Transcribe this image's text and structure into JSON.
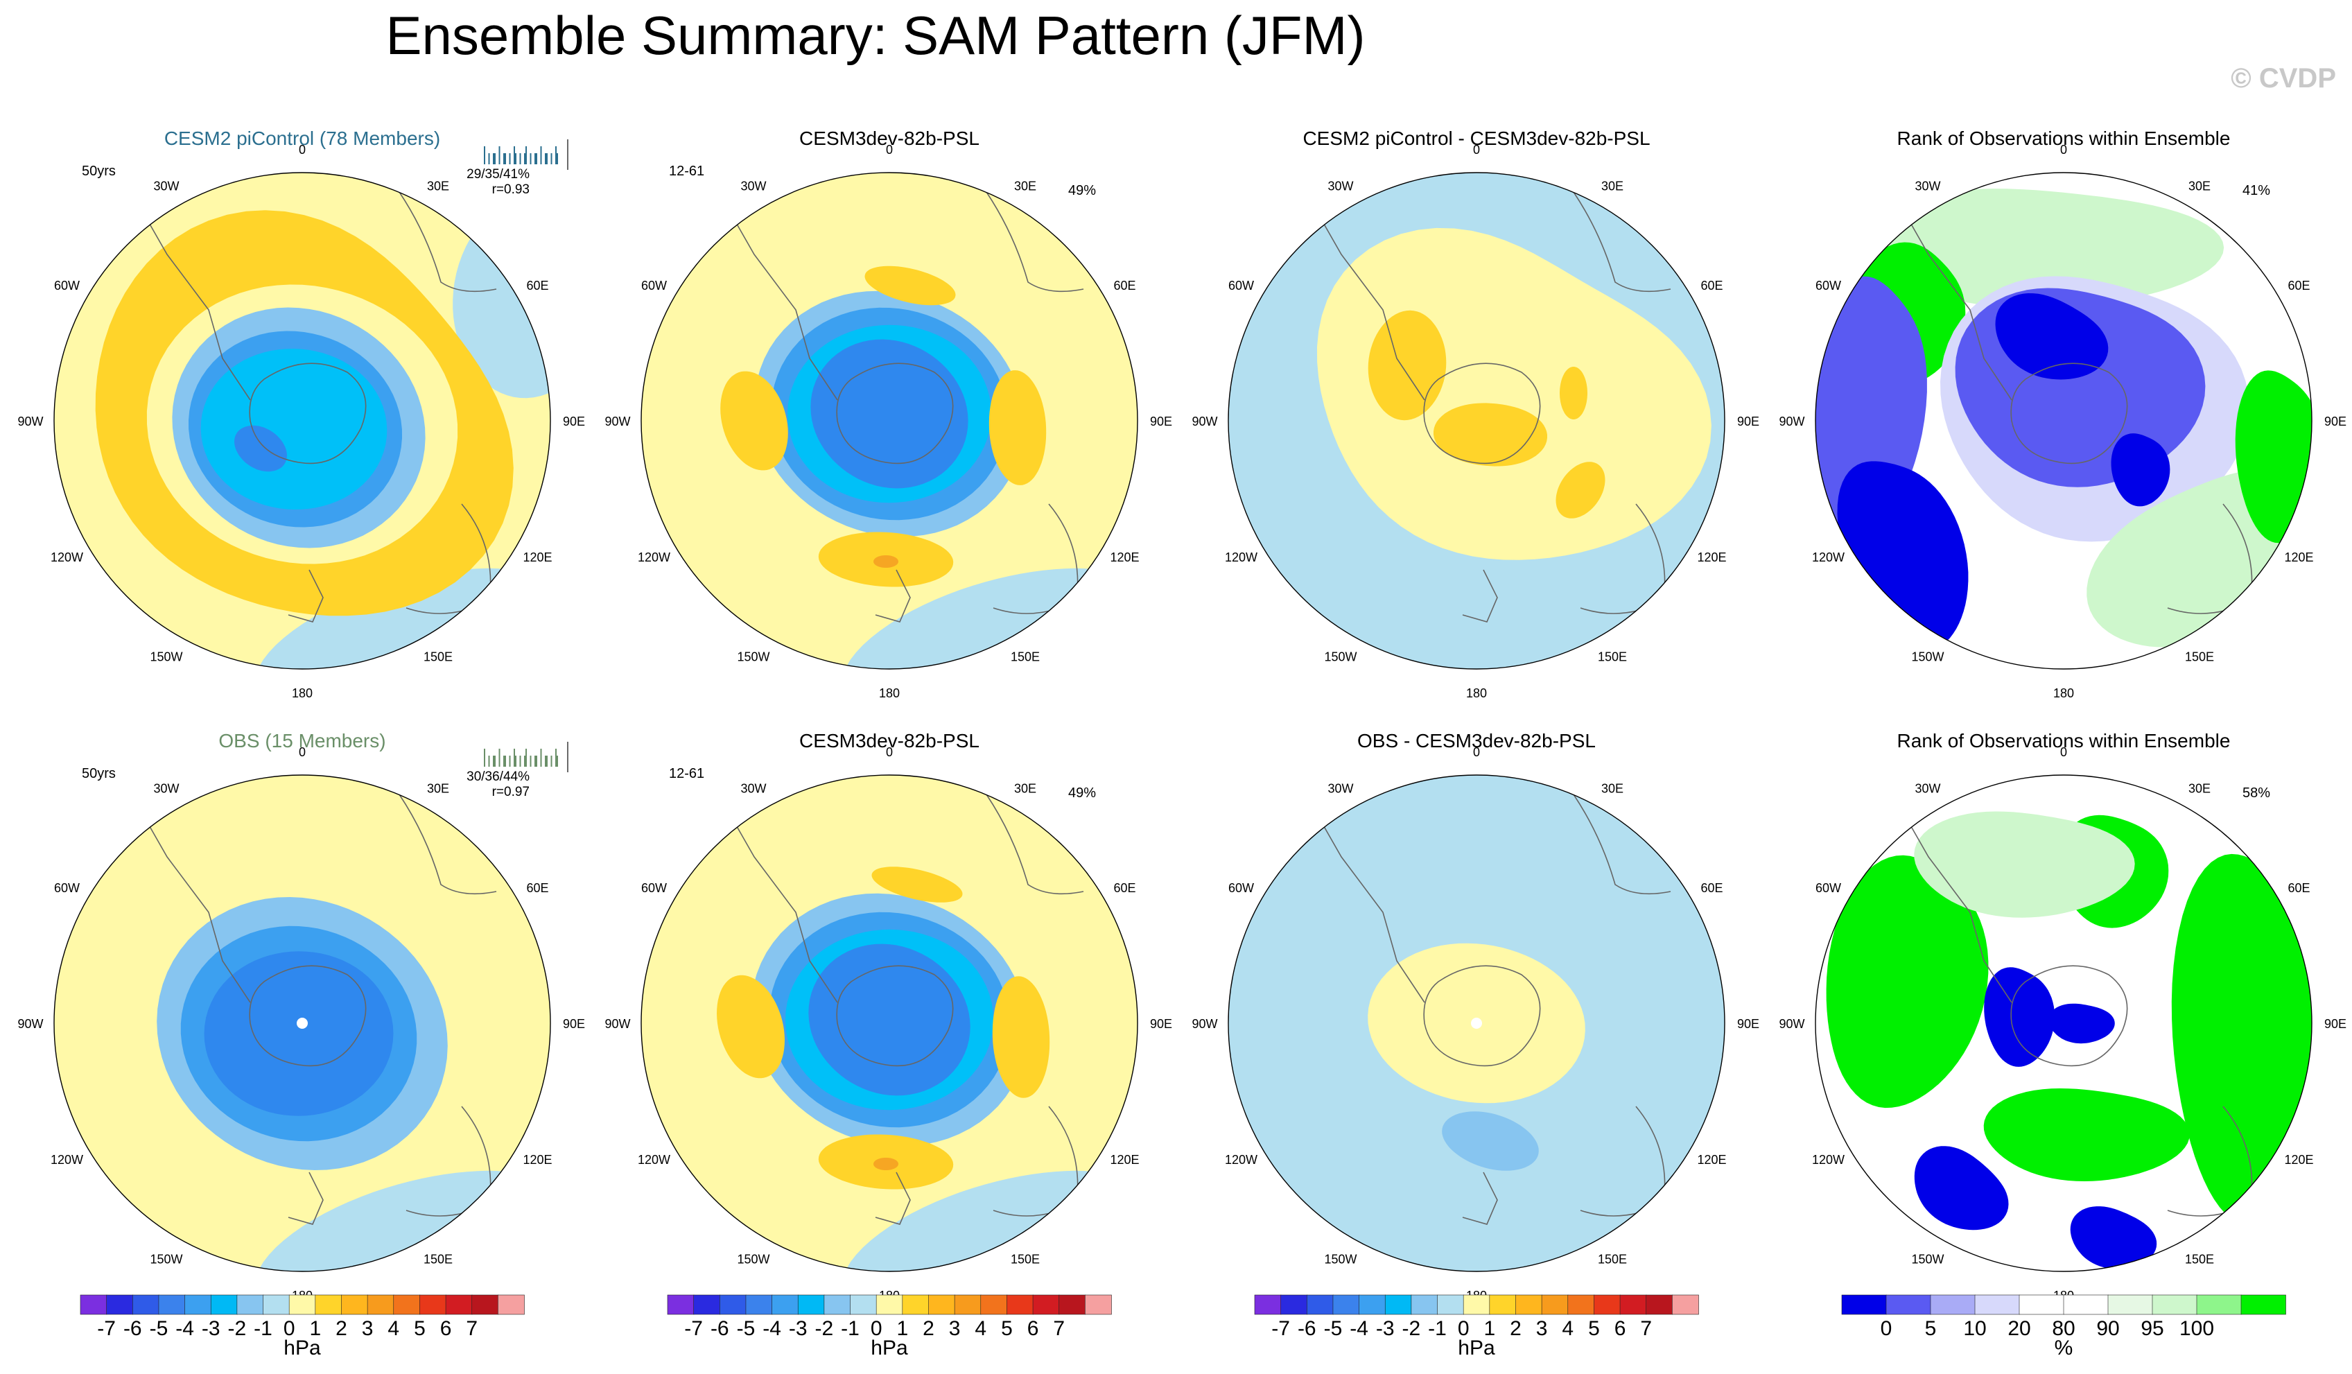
{
  "figure": {
    "title": "Ensemble Summary: SAM Pattern (JFM)",
    "watermark": "© CVDP"
  },
  "colors": {
    "ocean_light_blue": "#b3dff0",
    "pale_yellow": "#fff9a8",
    "orange_yellow": "#ffd42a",
    "orange": "#f6a623",
    "cyan": "#00c0f8",
    "mid_blue": "#3ca0f0",
    "blue": "#2f88ee",
    "light_cornflower": "#87c5f0",
    "rank_white": "#ffffff",
    "rank_green": "#00f000",
    "rank_light_green": "#cef7cc",
    "rank_blue": "#0000e8",
    "rank_mid_blue": "#5a5af2",
    "rank_pale_blue": "#d7d9fb"
  },
  "chart_data": [
    {
      "type": "heatmap",
      "id": "r1c1",
      "title": "CESM2 piControl (78 Members)",
      "title_color": "#2b6f8f",
      "left_note": "50yrs",
      "stat1": "29/35/41%",
      "stat2": "r=0.93",
      "spread_bar": true,
      "right_note": "",
      "lon_labels": [
        "0",
        "30E",
        "60E",
        "90E",
        "120E",
        "150E",
        "180",
        "150W",
        "120W",
        "90W",
        "60W",
        "30W"
      ],
      "units": "hPa",
      "fields": [
        "mslp_regression_SAM"
      ]
    },
    {
      "type": "heatmap",
      "id": "r1c2",
      "title": "CESM3dev-82b-PSL",
      "title_color": "#000000",
      "left_note": "12-61",
      "stat1": "",
      "stat2": "",
      "spread_bar": false,
      "right_note": "49%",
      "lon_labels": [
        "0",
        "30E",
        "60E",
        "90E",
        "120E",
        "150E",
        "180",
        "150W",
        "120W",
        "90W",
        "60W",
        "30W"
      ],
      "units": "hPa"
    },
    {
      "type": "heatmap",
      "id": "r1c3",
      "title": "CESM2 piControl - CESM3dev-82b-PSL",
      "title_color": "#000000",
      "left_note": "",
      "stat1": "",
      "stat2": "",
      "spread_bar": false,
      "right_note": "",
      "lon_labels": [
        "0",
        "30E",
        "60E",
        "90E",
        "120E",
        "150E",
        "180",
        "150W",
        "120W",
        "90W",
        "60W",
        "30W"
      ],
      "units": "hPa"
    },
    {
      "type": "heatmap",
      "id": "r1c4",
      "title": "Rank of Observations within Ensemble",
      "title_color": "#000000",
      "left_note": "",
      "stat1": "",
      "stat2": "",
      "spread_bar": false,
      "right_note": "41%",
      "lon_labels": [
        "0",
        "30E",
        "60E",
        "90E",
        "120E",
        "150E",
        "180",
        "150W",
        "120W",
        "90W",
        "60W",
        "30W"
      ],
      "units": "%"
    },
    {
      "type": "heatmap",
      "id": "r2c1",
      "title": "OBS (15 Members)",
      "title_color": "#6a8f68",
      "left_note": "50yrs",
      "stat1": "30/36/44%",
      "stat2": "r=0.97",
      "spread_bar": true,
      "right_note": "",
      "lon_labels": [
        "0",
        "30E",
        "60E",
        "90E",
        "120E",
        "150E",
        "180",
        "150W",
        "120W",
        "90W",
        "60W",
        "30W"
      ],
      "units": "hPa"
    },
    {
      "type": "heatmap",
      "id": "r2c2",
      "title": "CESM3dev-82b-PSL",
      "title_color": "#000000",
      "left_note": "12-61",
      "stat1": "",
      "stat2": "",
      "spread_bar": false,
      "right_note": "49%",
      "lon_labels": [
        "0",
        "30E",
        "60E",
        "90E",
        "120E",
        "150E",
        "180",
        "150W",
        "120W",
        "90W",
        "60W",
        "30W"
      ],
      "units": "hPa"
    },
    {
      "type": "heatmap",
      "id": "r2c3",
      "title": "OBS - CESM3dev-82b-PSL",
      "title_color": "#000000",
      "left_note": "",
      "stat1": "",
      "stat2": "",
      "spread_bar": false,
      "right_note": "",
      "lon_labels": [
        "0",
        "30E",
        "60E",
        "90E",
        "120E",
        "150E",
        "180",
        "150W",
        "120W",
        "90W",
        "60W",
        "30W"
      ],
      "units": "hPa"
    },
    {
      "type": "heatmap",
      "id": "r2c4",
      "title": "Rank of Observations within Ensemble",
      "title_color": "#000000",
      "left_note": "",
      "stat1": "",
      "stat2": "",
      "spread_bar": false,
      "right_note": "58%",
      "lon_labels": [
        "0",
        "30E",
        "60E",
        "90E",
        "120E",
        "150E",
        "180",
        "150W",
        "120W",
        "90W",
        "60W",
        "30W"
      ],
      "units": "%"
    }
  ],
  "colorbars": [
    {
      "id": "cb1",
      "unit_label": "hPa",
      "colors": [
        "#7b2fe0",
        "#2a2ae0",
        "#2f5be8",
        "#3b82ec",
        "#3ca0f0",
        "#00b9f5",
        "#87c5f0",
        "#b3dff0",
        "#fff9a8",
        "#ffd42a",
        "#ffb61e",
        "#f79b1d",
        "#f2731c",
        "#e8381a",
        "#d21c22",
        "#b8161e",
        "#f5a0a0"
      ],
      "labels": [
        "-7",
        "-6",
        "-5",
        "-4",
        "-3",
        "-2",
        "-1",
        "0",
        "1",
        "2",
        "3",
        "4",
        "5",
        "6",
        "7"
      ]
    },
    {
      "id": "cb2",
      "unit_label": "hPa",
      "colors": [
        "#7b2fe0",
        "#2a2ae0",
        "#2f5be8",
        "#3b82ec",
        "#3ca0f0",
        "#00b9f5",
        "#87c5f0",
        "#b3dff0",
        "#fff9a8",
        "#ffd42a",
        "#ffb61e",
        "#f79b1d",
        "#f2731c",
        "#e8381a",
        "#d21c22",
        "#b8161e",
        "#f5a0a0"
      ],
      "labels": [
        "-7",
        "-6",
        "-5",
        "-4",
        "-3",
        "-2",
        "-1",
        "0",
        "1",
        "2",
        "3",
        "4",
        "5",
        "6",
        "7"
      ]
    },
    {
      "id": "cb3",
      "unit_label": "hPa",
      "colors": [
        "#7b2fe0",
        "#2a2ae0",
        "#2f5be8",
        "#3b82ec",
        "#3ca0f0",
        "#00b9f5",
        "#87c5f0",
        "#b3dff0",
        "#fff9a8",
        "#ffd42a",
        "#ffb61e",
        "#f79b1d",
        "#f2731c",
        "#e8381a",
        "#d21c22",
        "#b8161e",
        "#f5a0a0"
      ],
      "labels": [
        "-7",
        "-6",
        "-5",
        "-4",
        "-3",
        "-2",
        "-1",
        "0",
        "1",
        "2",
        "3",
        "4",
        "5",
        "6",
        "7"
      ]
    },
    {
      "id": "cb4",
      "unit_label": "%",
      "colors": [
        "#0000e8",
        "#5a5af2",
        "#a9abf6",
        "#d7d9fb",
        "#ffffff",
        "#ffffff",
        "#e6f8e4",
        "#cef7cc",
        "#8ef58b",
        "#00f000"
      ],
      "labels": [
        "0",
        "5",
        "10",
        "20",
        "80",
        "90",
        "95",
        "100"
      ]
    }
  ]
}
